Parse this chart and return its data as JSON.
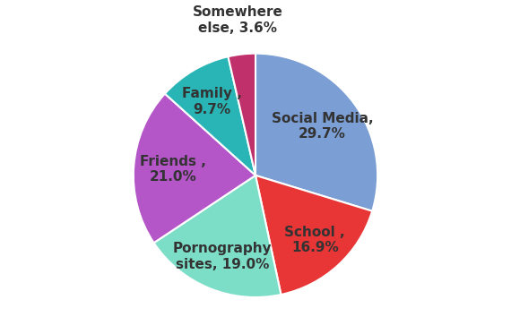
{
  "labels": [
    "Social Media,\n29.7%",
    "School ,\n16.9%",
    "Pornography\nsites, 19.0%",
    "Friends ,\n21.0%",
    "Family ,\n9.7%",
    "Somewhere\nelse, 3.6%"
  ],
  "values": [
    29.7,
    16.9,
    19.0,
    21.0,
    9.7,
    3.6
  ],
  "colors": [
    "#7b9fd4",
    "#e83535",
    "#7ddec8",
    "#b455c8",
    "#29b5b5",
    "#c0306a"
  ],
  "startangle": 90,
  "background_color": "#ffffff",
  "label_fontsize": 11,
  "label_color": "#333333",
  "labeldistance": 0.7,
  "somewhere_labeldistance": 1.25,
  "figsize": [
    5.7,
    3.73
  ],
  "dpi": 100
}
